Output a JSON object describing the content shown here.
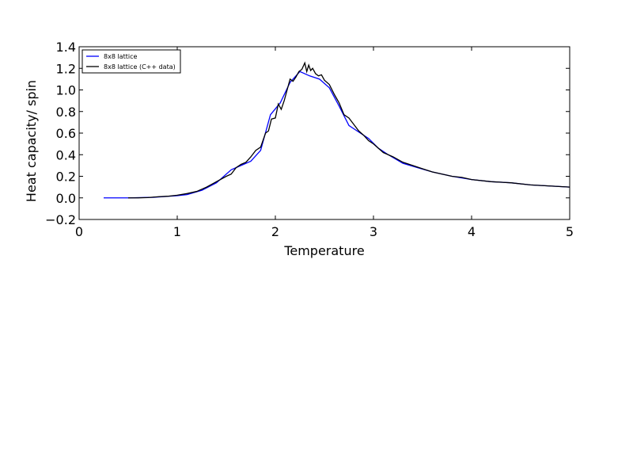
{
  "chart_data": {
    "type": "line",
    "xlabel": "Temperature",
    "ylabel": "Heat capacity/ spin",
    "xlim": [
      0,
      5
    ],
    "ylim": [
      -0.2,
      1.4
    ],
    "xticks": [
      "0",
      "1",
      "2",
      "3",
      "4",
      "5"
    ],
    "yticks": [
      "−0.2",
      "0.0",
      "0.2",
      "0.4",
      "0.6",
      "0.8",
      "1.0",
      "1.2",
      "1.4"
    ],
    "grid": false,
    "legend_position": "top-left",
    "series": [
      {
        "name": "8x8 lattice",
        "color": "#0000ff",
        "x": [
          0.25,
          0.5,
          0.75,
          1.0,
          1.1,
          1.25,
          1.4,
          1.55,
          1.65,
          1.75,
          1.85,
          1.95,
          2.05,
          2.15,
          2.25,
          2.35,
          2.45,
          2.55,
          2.65,
          2.75,
          2.85,
          2.95,
          3.05,
          3.15,
          3.3,
          3.45,
          3.6,
          3.8,
          4.0,
          4.2,
          4.4,
          4.6,
          4.8,
          5.0
        ],
        "y": [
          0.0,
          0.0,
          0.005,
          0.02,
          0.03,
          0.07,
          0.14,
          0.26,
          0.3,
          0.34,
          0.44,
          0.77,
          0.88,
          1.07,
          1.17,
          1.13,
          1.1,
          1.02,
          0.85,
          0.67,
          0.61,
          0.55,
          0.46,
          0.4,
          0.32,
          0.28,
          0.24,
          0.2,
          0.17,
          0.15,
          0.14,
          0.12,
          0.11,
          0.1
        ]
      },
      {
        "name": "8x8 lattice (C++ data)",
        "color": "#000000",
        "x": [
          0.5,
          0.6,
          0.7,
          0.8,
          0.9,
          1.0,
          1.1,
          1.2,
          1.3,
          1.4,
          1.5,
          1.55,
          1.6,
          1.65,
          1.7,
          1.75,
          1.8,
          1.85,
          1.9,
          1.93,
          1.96,
          2.0,
          2.03,
          2.06,
          2.09,
          2.12,
          2.15,
          2.18,
          2.21,
          2.24,
          2.27,
          2.3,
          2.32,
          2.34,
          2.36,
          2.38,
          2.41,
          2.44,
          2.47,
          2.5,
          2.55,
          2.6,
          2.65,
          2.7,
          2.75,
          2.8,
          2.85,
          2.9,
          2.95,
          3.0,
          3.1,
          3.2,
          3.3,
          3.4,
          3.5,
          3.6,
          3.7,
          3.8,
          3.9,
          4.0,
          4.2,
          4.4,
          4.6,
          4.8,
          5.0
        ],
        "y": [
          0.0,
          0.0,
          0.003,
          0.01,
          0.015,
          0.025,
          0.04,
          0.06,
          0.1,
          0.15,
          0.2,
          0.22,
          0.28,
          0.31,
          0.33,
          0.38,
          0.44,
          0.47,
          0.6,
          0.62,
          0.73,
          0.74,
          0.87,
          0.82,
          0.9,
          1.0,
          1.1,
          1.08,
          1.12,
          1.17,
          1.19,
          1.25,
          1.17,
          1.23,
          1.18,
          1.2,
          1.15,
          1.13,
          1.14,
          1.09,
          1.05,
          0.96,
          0.88,
          0.77,
          0.74,
          0.68,
          0.62,
          0.58,
          0.53,
          0.5,
          0.42,
          0.38,
          0.33,
          0.3,
          0.27,
          0.24,
          0.22,
          0.2,
          0.19,
          0.17,
          0.15,
          0.14,
          0.12,
          0.11,
          0.1
        ]
      }
    ]
  }
}
